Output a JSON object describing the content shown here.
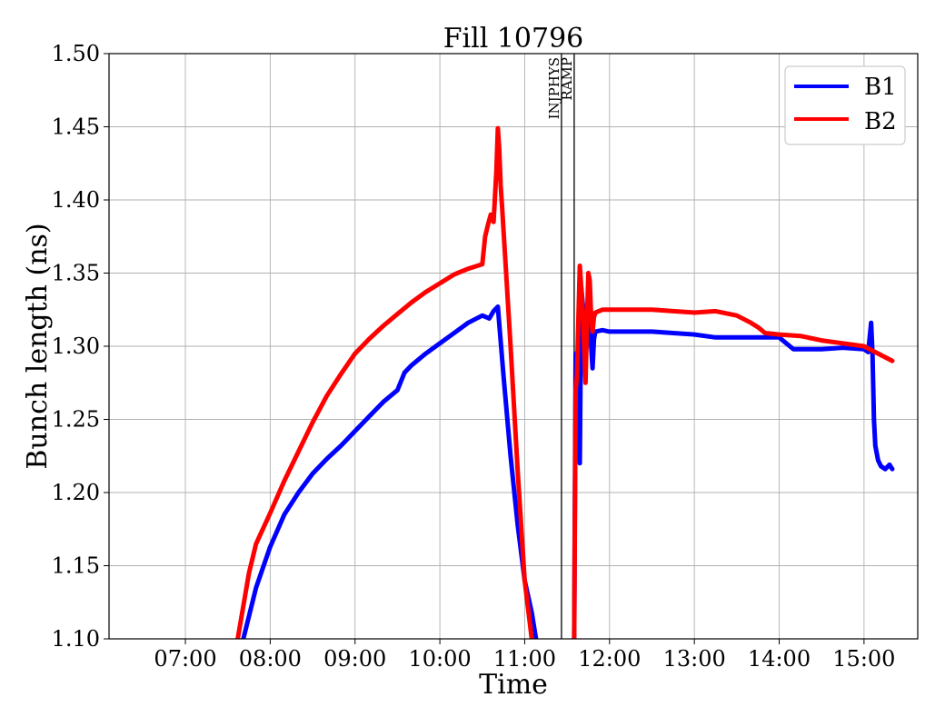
{
  "chart_data": {
    "type": "line",
    "title": "Fill 10796",
    "xlabel": "Time",
    "ylabel": "Bunch length (ns)",
    "xlim": [
      "06:06",
      "15:38"
    ],
    "ylim": [
      1.1,
      1.5
    ],
    "grid": true,
    "legend_position": "top-right",
    "x_ticks": [
      "07:00",
      "08:00",
      "09:00",
      "10:00",
      "11:00",
      "12:00",
      "13:00",
      "14:00",
      "15:00"
    ],
    "y_ticks": [
      "1.10",
      "1.15",
      "1.20",
      "1.25",
      "1.30",
      "1.35",
      "1.40",
      "1.45",
      "1.50"
    ],
    "markers": [
      {
        "label": "INJPHYS",
        "x": "11:26"
      },
      {
        "label": "RAMP",
        "x": "11:35"
      }
    ],
    "series": [
      {
        "name": "B1",
        "color": "#0000ff",
        "segments": [
          {
            "x": [
              "07:41",
              "07:50",
              "08:00",
              "08:10",
              "08:20",
              "08:30",
              "08:40",
              "08:50",
              "09:00",
              "09:10",
              "09:20",
              "09:30",
              "09:35",
              "09:40",
              "09:50",
              "10:00",
              "10:10",
              "10:20",
              "10:30",
              "10:35",
              "10:38",
              "10:41",
              "10:45",
              "10:50",
              "10:55",
              "11:00",
              "11:05",
              "11:08"
            ],
            "y": [
              1.1,
              1.135,
              1.163,
              1.185,
              1.2,
              1.213,
              1.223,
              1.232,
              1.242,
              1.252,
              1.262,
              1.27,
              1.282,
              1.287,
              1.295,
              1.302,
              1.309,
              1.316,
              1.321,
              1.319,
              1.324,
              1.327,
              1.28,
              1.225,
              1.178,
              1.14,
              1.118,
              1.1
            ]
          },
          {
            "x": [
              "11:35",
              "11:36",
              "11:37",
              "11:38",
              "11:39",
              "11:40",
              "11:41",
              "11:42",
              "11:43",
              "11:44",
              "11:45",
              "11:46",
              "11:47",
              "11:48",
              "11:49",
              "11:50",
              "11:55",
              "12:00",
              "12:15",
              "12:30",
              "12:45",
              "13:00",
              "13:15",
              "13:30",
              "13:45",
              "14:00",
              "14:10",
              "14:20",
              "14:30",
              "14:45",
              "15:00",
              "15:03",
              "15:05",
              "15:06",
              "15:07",
              "15:08",
              "15:10",
              "15:12",
              "15:15",
              "15:18",
              "15:20"
            ],
            "y": [
              1.1,
              1.295,
              1.285,
              1.265,
              1.22,
              1.34,
              1.33,
              1.32,
              1.29,
              1.305,
              1.335,
              1.33,
              1.3,
              1.285,
              1.305,
              1.31,
              1.311,
              1.31,
              1.31,
              1.31,
              1.309,
              1.308,
              1.306,
              1.306,
              1.306,
              1.306,
              1.298,
              1.298,
              1.298,
              1.299,
              1.298,
              1.296,
              1.316,
              1.295,
              1.25,
              1.232,
              1.222,
              1.218,
              1.216,
              1.219,
              1.216
            ]
          }
        ]
      },
      {
        "name": "B2",
        "color": "#ff0000",
        "segments": [
          {
            "x": [
              "07:37",
              "07:45",
              "07:50",
              "08:00",
              "08:10",
              "08:20",
              "08:30",
              "08:40",
              "08:50",
              "09:00",
              "09:10",
              "09:20",
              "09:30",
              "09:40",
              "09:50",
              "10:00",
              "10:10",
              "10:20",
              "10:30",
              "10:32",
              "10:34",
              "10:36",
              "10:38",
              "10:40",
              "10:41",
              "10:42",
              "10:43",
              "10:44",
              "10:50",
              "10:55",
              "11:00",
              "11:05"
            ],
            "y": [
              1.1,
              1.145,
              1.165,
              1.186,
              1.208,
              1.228,
              1.248,
              1.266,
              1.281,
              1.295,
              1.305,
              1.314,
              1.322,
              1.33,
              1.337,
              1.343,
              1.349,
              1.353,
              1.356,
              1.375,
              1.383,
              1.39,
              1.385,
              1.42,
              1.449,
              1.435,
              1.41,
              1.395,
              1.3,
              1.215,
              1.14,
              1.1
            ]
          },
          {
            "x": [
              "11:35",
              "11:36",
              "11:37",
              "11:38",
              "11:39",
              "11:40",
              "11:41",
              "11:42",
              "11:43",
              "11:44",
              "11:45",
              "11:46",
              "11:47",
              "11:48",
              "11:49",
              "11:50",
              "11:55",
              "12:00",
              "12:15",
              "12:30",
              "12:45",
              "13:00",
              "13:15",
              "13:30",
              "13:40",
              "13:45",
              "13:50",
              "14:00",
              "14:15",
              "14:30",
              "14:45",
              "15:00",
              "15:10",
              "15:20"
            ],
            "y": [
              1.1,
              1.27,
              1.28,
              1.32,
              1.355,
              1.34,
              1.325,
              1.3,
              1.275,
              1.315,
              1.35,
              1.345,
              1.32,
              1.31,
              1.32,
              1.323,
              1.325,
              1.325,
              1.325,
              1.325,
              1.324,
              1.323,
              1.324,
              1.321,
              1.316,
              1.313,
              1.309,
              1.308,
              1.307,
              1.304,
              1.302,
              1.3,
              1.295,
              1.29
            ]
          }
        ]
      }
    ]
  }
}
